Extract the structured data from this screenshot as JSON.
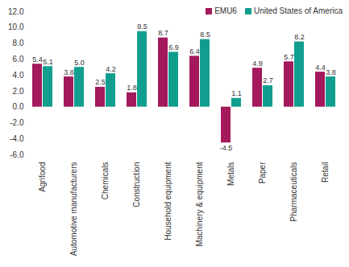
{
  "chart_data": {
    "type": "bar",
    "categories": [
      "Agrifood",
      "Automotive manufacturers",
      "Chemicals",
      "Construction",
      "Household equipment",
      "Machinery & equipment",
      "Metals",
      "Paper",
      "Pharmaceuticals",
      "Retail"
    ],
    "series": [
      {
        "name": "EMU6",
        "color": "#a3195b",
        "values": [
          5.4,
          3.8,
          2.5,
          1.8,
          8.7,
          6.4,
          -4.5,
          4.9,
          5.7,
          4.4
        ],
        "value_labels": [
          "5.4",
          "3.8",
          "2.5",
          "1.8",
          "8.7",
          "6.4",
          "-4.5",
          "4.9",
          "5.7",
          "4.4"
        ]
      },
      {
        "name": "United States of America",
        "color": "#119e8f",
        "values": [
          5.1,
          5.0,
          4.2,
          9.5,
          6.9,
          8.5,
          1.1,
          2.7,
          8.2,
          3.8
        ],
        "value_labels": [
          "5.1",
          "5.0",
          "4.2",
          "9.5",
          "6.9",
          "8.5",
          "1.1",
          "2.7",
          "8.2",
          "3.8"
        ]
      }
    ],
    "ylim": [
      -6,
      12
    ],
    "yticks": [
      {
        "value": -6,
        "label": "-6.0"
      },
      {
        "value": -4,
        "label": "-4.0"
      },
      {
        "value": -2,
        "label": "-2.0"
      },
      {
        "value": 0,
        "label": "0.0"
      },
      {
        "value": 2,
        "label": "2.0"
      },
      {
        "value": 4,
        "label": "4.0"
      },
      {
        "value": 6,
        "label": "6.0"
      },
      {
        "value": 8,
        "label": "8.0"
      },
      {
        "value": 10,
        "label": "10.0"
      },
      {
        "value": 12,
        "label": "12.0"
      }
    ],
    "grid": false,
    "legend": "top-right",
    "data_labels": true
  }
}
